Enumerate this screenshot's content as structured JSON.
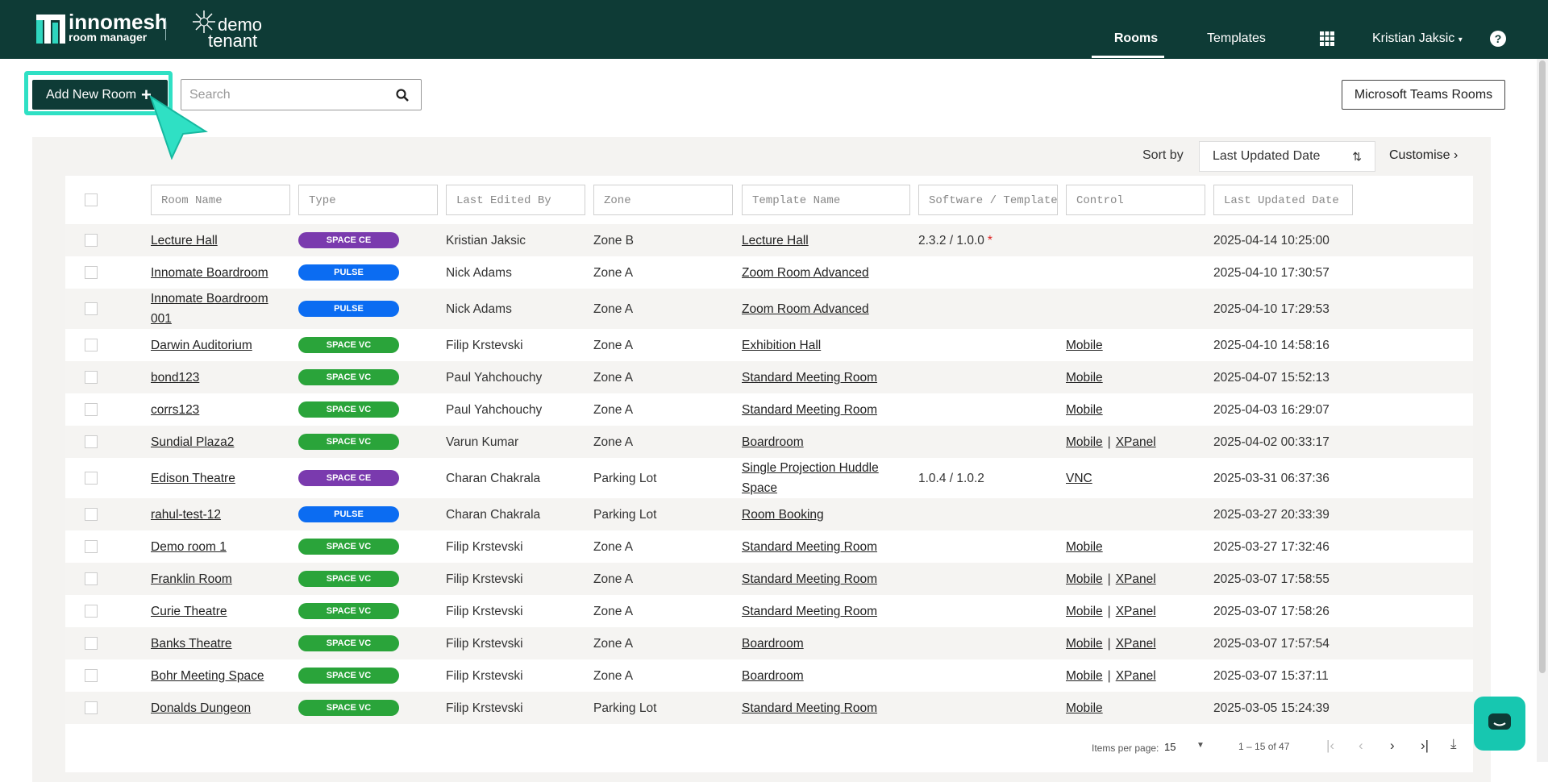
{
  "header": {
    "brand": "innomesh",
    "brand_sub": "room manager",
    "tenant_line1": "demo",
    "tenant_line2": "tenant",
    "nav": [
      "Rooms",
      "Templates"
    ],
    "user": "Kristian Jaksic"
  },
  "toolbar": {
    "add_button": "Add New Room",
    "search_placeholder": "Search",
    "teams_button": "Microsoft Teams Rooms"
  },
  "sort": {
    "label": "Sort by",
    "value": "Last Updated Date",
    "customise": "Customise"
  },
  "table": {
    "filters": [
      "Room Name",
      "Type",
      "Last Edited By",
      "Zone",
      "Template Name",
      "Software / Template",
      "Control",
      "Last Updated Date"
    ],
    "badge_colors": {
      "SPACE CE": "#7a3aae",
      "PULSE": "#0b6cf2",
      "SPACE VC": "#2aa43a"
    },
    "control_separator": "|",
    "rows": [
      {
        "room": "Lecture Hall",
        "type": "SPACE CE",
        "edited_by": "Kristian Jaksic",
        "zone": "Zone B",
        "template": "Lecture Hall",
        "software": "2.3.2 / 1.0.0",
        "software_flag": "*",
        "updated": "2025-04-14 10:25:00"
      },
      {
        "room": "Innomate Boardroom",
        "type": "PULSE",
        "edited_by": "Nick Adams",
        "zone": "Zone A",
        "template": "Zoom Room Advanced",
        "updated": "2025-04-10 17:30:57"
      },
      {
        "room": "Innomate Boardroom 001",
        "type": "PULSE",
        "edited_by": "Nick Adams",
        "zone": "Zone A",
        "template": "Zoom Room Advanced",
        "updated": "2025-04-10 17:29:53"
      },
      {
        "room": "Darwin Auditorium",
        "type": "SPACE VC",
        "edited_by": "Filip Krstevski",
        "zone": "Zone A",
        "template": "Exhibition Hall",
        "control": [
          "Mobile"
        ],
        "updated": "2025-04-10 14:58:16"
      },
      {
        "room": "bond123",
        "type": "SPACE VC",
        "edited_by": "Paul Yahchouchy",
        "zone": "Zone A",
        "template": "Standard Meeting Room",
        "control": [
          "Mobile"
        ],
        "updated": "2025-04-07 15:52:13"
      },
      {
        "room": "corrs123",
        "type": "SPACE VC",
        "edited_by": "Paul Yahchouchy",
        "zone": "Zone A",
        "template": "Standard Meeting Room",
        "control": [
          "Mobile"
        ],
        "updated": "2025-04-03 16:29:07"
      },
      {
        "room": "Sundial Plaza2",
        "type": "SPACE VC",
        "edited_by": "Varun Kumar",
        "zone": "Zone A",
        "template": "Boardroom",
        "control": [
          "Mobile",
          "XPanel"
        ],
        "updated": "2025-04-02 00:33:17"
      },
      {
        "room": "Edison Theatre",
        "type": "SPACE CE",
        "edited_by": "Charan Chakrala",
        "zone": "Parking Lot",
        "template": "Single Projection Huddle Space",
        "software": "1.0.4 / 1.0.2",
        "control": [
          "VNC"
        ],
        "updated": "2025-03-31 06:37:36"
      },
      {
        "room": "rahul-test-12",
        "type": "PULSE",
        "edited_by": "Charan Chakrala",
        "zone": "Parking Lot",
        "template": "Room Booking",
        "updated": "2025-03-27 20:33:39"
      },
      {
        "room": "Demo room 1",
        "type": "SPACE VC",
        "edited_by": "Filip Krstevski",
        "zone": "Zone A",
        "template": "Standard Meeting Room",
        "control": [
          "Mobile"
        ],
        "updated": "2025-03-27 17:32:46"
      },
      {
        "room": "Franklin Room",
        "type": "SPACE VC",
        "edited_by": "Filip Krstevski",
        "zone": "Zone A",
        "template": "Standard Meeting Room",
        "control": [
          "Mobile",
          "XPanel"
        ],
        "updated": "2025-03-07 17:58:55"
      },
      {
        "room": "Curie Theatre",
        "type": "SPACE VC",
        "edited_by": "Filip Krstevski",
        "zone": "Zone A",
        "template": "Standard Meeting Room",
        "control": [
          "Mobile",
          "XPanel"
        ],
        "updated": "2025-03-07 17:58:26"
      },
      {
        "room": "Banks Theatre",
        "type": "SPACE VC",
        "edited_by": "Filip Krstevski",
        "zone": "Zone A",
        "template": "Boardroom",
        "control": [
          "Mobile",
          "XPanel"
        ],
        "updated": "2025-03-07 17:57:54"
      },
      {
        "room": "Bohr Meeting Space",
        "type": "SPACE VC",
        "edited_by": "Filip Krstevski",
        "zone": "Zone A",
        "template": "Boardroom",
        "control": [
          "Mobile",
          "XPanel"
        ],
        "updated": "2025-03-07 15:37:11"
      },
      {
        "room": "Donalds Dungeon",
        "type": "SPACE VC",
        "edited_by": "Filip Krstevski",
        "zone": "Parking Lot",
        "template": "Standard Meeting Room",
        "control": [
          "Mobile"
        ],
        "updated": "2025-03-05 15:24:39"
      }
    ]
  },
  "pagination": {
    "label": "Items per page:",
    "per_page": 15,
    "range": "1 – 15 of 47"
  }
}
